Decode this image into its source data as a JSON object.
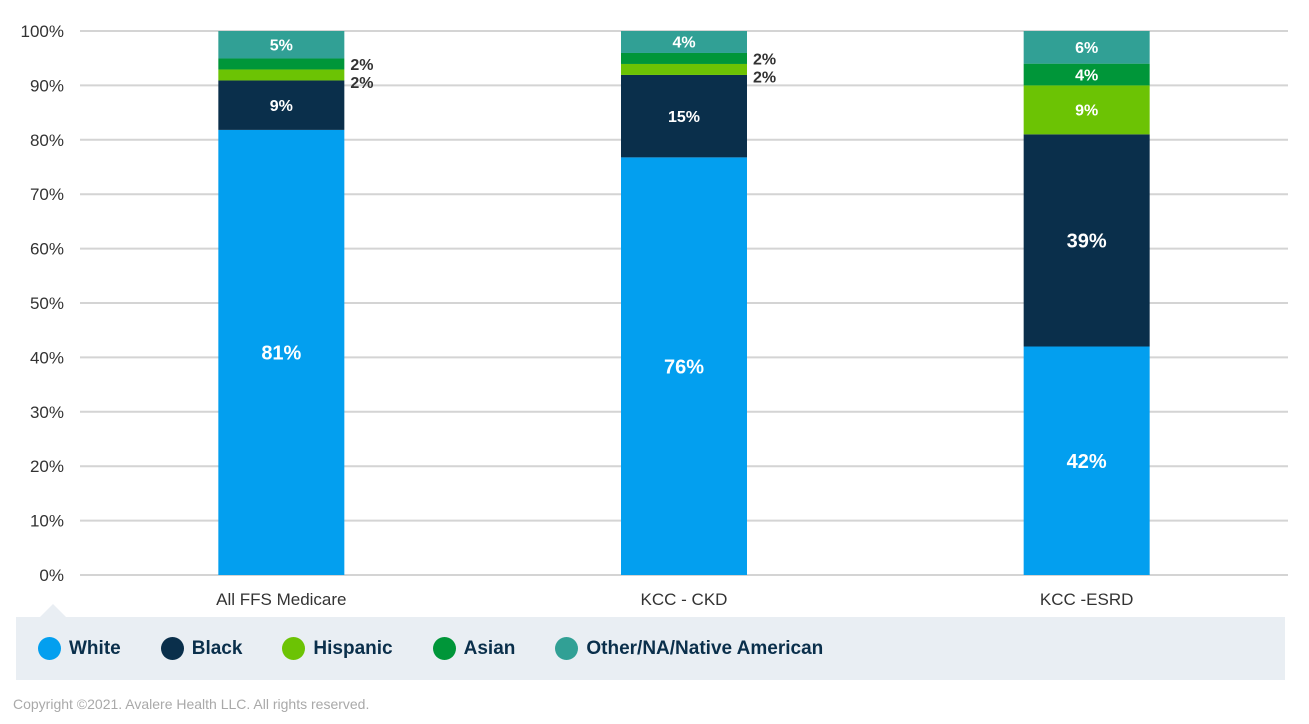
{
  "chart_data": {
    "type": "bar",
    "stacked": true,
    "percent_stacked": true,
    "categories": [
      "All FFS Medicare",
      "KCC - CKD",
      "KCC -ESRD"
    ],
    "series": [
      {
        "name": "White",
        "color": "#039fef",
        "values": [
          81,
          76,
          42
        ]
      },
      {
        "name": "Black",
        "color": "#0a2f4b",
        "values": [
          9,
          15,
          39
        ]
      },
      {
        "name": "Hispanic",
        "color": "#6cc304",
        "values": [
          2,
          2,
          9
        ]
      },
      {
        "name": "Asian",
        "color": "#009639",
        "values": [
          2,
          2,
          4
        ]
      },
      {
        "name": "Other/NA/Native American",
        "color": "#31a095",
        "values": [
          5,
          4,
          6
        ]
      }
    ],
    "data_label_suffix": "%",
    "ylim": [
      0,
      100
    ],
    "yticks": [
      "0%",
      "10%",
      "20%",
      "30%",
      "40%",
      "50%",
      "60%",
      "70%",
      "80%",
      "90%",
      "100%"
    ],
    "grid": true,
    "legend_position": "bottom"
  },
  "footer": {
    "copyright": "Copyright ©2021. Avalere Health LLC. All rights reserved."
  }
}
